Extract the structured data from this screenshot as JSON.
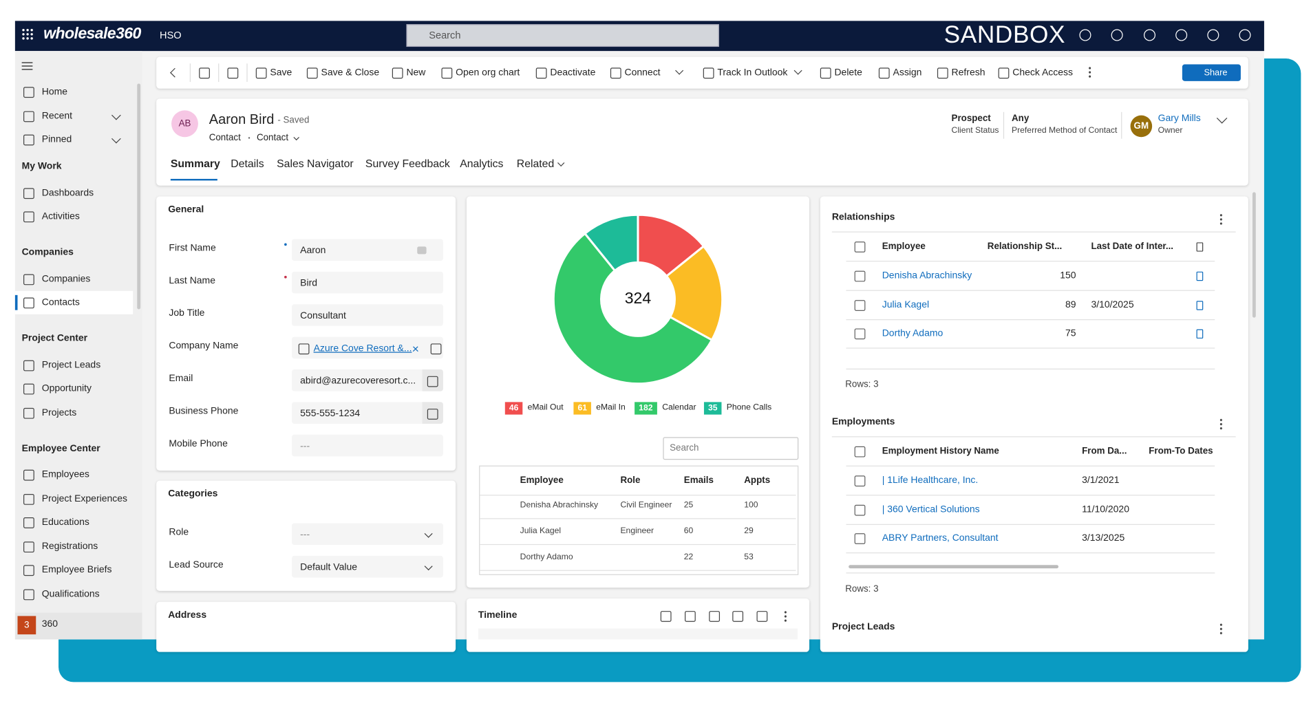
{
  "top_bar": {
    "brand": "wholesale360",
    "area": "HSO",
    "search": "Search",
    "environment": "SANDBOX"
  },
  "sidebar": {
    "top": [
      "Home",
      "Recent",
      "Pinned"
    ],
    "groups": [
      {
        "title": "My Work",
        "items": [
          "Dashboards",
          "Activities"
        ]
      },
      {
        "title": "Companies",
        "items": [
          "Companies",
          "Contacts"
        ]
      },
      {
        "title": "Project Center",
        "items": [
          "Project Leads",
          "Opportunity",
          "Projects"
        ]
      },
      {
        "title": "Employee Center",
        "items": [
          "Employees",
          "Project Experiences",
          "Educations",
          "Registrations",
          "Employee Briefs",
          "Qualifications"
        ]
      }
    ],
    "area_badge": "3",
    "area": "360"
  },
  "command_bar": {
    "commands": [
      "Save",
      "Save & Close",
      "New",
      "Open org chart",
      "Deactivate",
      "Connect",
      "Track In Outlook",
      "Delete",
      "Assign",
      "Refresh",
      "Check Access"
    ],
    "share": "Share"
  },
  "record": {
    "initials": "AB",
    "name": "Aaron Bird",
    "status": "- Saved",
    "entity": "Contact",
    "form": "Contact",
    "header_fields": [
      {
        "value": "Prospect",
        "label": "Client Status"
      },
      {
        "value": "Any",
        "label": "Preferred Method of Contact"
      }
    ],
    "owner": {
      "initials": "GM",
      "name": "Gary Mills",
      "label": "Owner"
    },
    "tabs": [
      "Summary",
      "Details",
      "Sales Navigator",
      "Survey Feedback",
      "Analytics",
      "Related"
    ]
  },
  "general": {
    "title": "General",
    "fields": [
      {
        "label": "First Name",
        "value": "Aaron"
      },
      {
        "label": "Last Name",
        "value": "Bird"
      },
      {
        "label": "Job Title",
        "value": "Consultant"
      },
      {
        "label": "Company Name",
        "value": "Azure Cove Resort &..."
      },
      {
        "label": "Email",
        "value": "abird@azurecoveresort.c..."
      },
      {
        "label": "Business Phone",
        "value": "555-555-1234"
      },
      {
        "label": "Mobile Phone",
        "value": "---"
      }
    ]
  },
  "categories": {
    "title": "Categories",
    "fields": [
      {
        "label": "Role",
        "value": "---"
      },
      {
        "label": "Lead Source",
        "value": "Default Value"
      }
    ]
  },
  "address": {
    "title": "Address"
  },
  "activity_chart": {
    "total": 324,
    "segments": [
      {
        "name": "eMail Out",
        "value": 46,
        "color": "#f04e4e"
      },
      {
        "name": "eMail In",
        "value": 61,
        "color": "#fbbc24"
      },
      {
        "name": "Calendar",
        "value": 182,
        "color": "#33c96a"
      },
      {
        "name": "Phone Calls",
        "value": 35,
        "color": "#1dbb98"
      }
    ]
  },
  "activity_table": {
    "search": "Search",
    "columns": [
      "Employee",
      "Role",
      "Emails",
      "Appts"
    ],
    "rows": [
      [
        "Denisha Abrachinsky",
        "Civil Engineer",
        25,
        100
      ],
      [
        "Julia Kagel",
        "Engineer",
        60,
        29
      ],
      [
        "Dorthy Adamo",
        null,
        22,
        53
      ]
    ]
  },
  "timeline": {
    "title": "Timeline"
  },
  "relationships": {
    "title": "Relationships",
    "columns": [
      "Employee",
      "Relationship St...",
      "Last Date of Inter..."
    ],
    "rows": [
      [
        "Denisha Abrachinsky",
        150,
        null
      ],
      [
        "Julia Kagel",
        89,
        "3/10/2025"
      ],
      [
        "Dorthy Adamo",
        75,
        null
      ]
    ],
    "footer": "Rows: 3"
  },
  "employments": {
    "title": "Employments",
    "columns": [
      "Employment History Name",
      "From Da...",
      "From-To Dates"
    ],
    "rows": [
      [
        "| 1Life Healthcare, Inc.",
        "3/1/2021"
      ],
      [
        "| 360 Vertical Solutions",
        "11/10/2020"
      ],
      [
        "ABRY Partners, Consultant",
        "3/13/2025"
      ]
    ],
    "footer": "Rows: 3"
  },
  "project_leads": {
    "title": "Project Leads"
  }
}
